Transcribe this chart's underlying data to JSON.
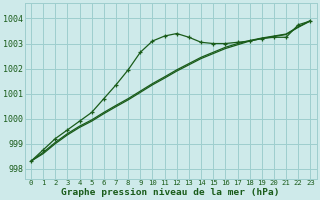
{
  "xlabel": "Graphe pression niveau de la mer (hPa)",
  "bg_color": "#ceeaea",
  "grid_color": "#9ecece",
  "line_color": "#1a5c1a",
  "xlim": [
    -0.5,
    23.5
  ],
  "ylim": [
    997.6,
    1004.6
  ],
  "yticks": [
    998,
    999,
    1000,
    1001,
    1002,
    1003,
    1004
  ],
  "xticks": [
    0,
    1,
    2,
    3,
    4,
    5,
    6,
    7,
    8,
    9,
    10,
    11,
    12,
    13,
    14,
    15,
    16,
    17,
    18,
    19,
    20,
    21,
    22,
    23
  ],
  "s1_x": [
    0,
    1,
    2,
    3,
    4,
    5,
    6,
    7,
    8,
    9,
    10,
    11,
    12,
    13,
    14,
    15,
    16,
    17,
    18,
    19,
    20,
    21,
    22,
    23
  ],
  "s1_y": [
    998.3,
    998.75,
    999.2,
    999.55,
    999.9,
    1000.25,
    1000.8,
    1001.35,
    1001.95,
    1002.65,
    1003.1,
    1003.3,
    1003.4,
    1003.25,
    1003.05,
    1003.0,
    1003.0,
    1003.05,
    1003.1,
    1003.2,
    1003.25,
    1003.25,
    1003.75,
    1003.9
  ],
  "s2_x": [
    0,
    1,
    2,
    3,
    4,
    5,
    6,
    7,
    8,
    9,
    10,
    11,
    12,
    13,
    14,
    15,
    16,
    17,
    18,
    19,
    20,
    21,
    22,
    23
  ],
  "s2_y": [
    998.3,
    998.6,
    999.0,
    999.35,
    999.65,
    999.9,
    1000.2,
    1000.48,
    1000.75,
    1001.05,
    1001.35,
    1001.62,
    1001.9,
    1002.15,
    1002.4,
    1002.6,
    1002.8,
    1002.95,
    1003.1,
    1003.2,
    1003.28,
    1003.36,
    1003.65,
    1003.9
  ],
  "s3_x": [
    0,
    1,
    2,
    3,
    4,
    5,
    6,
    7,
    8,
    9,
    10,
    11,
    12,
    13,
    14,
    15,
    16,
    17,
    18,
    19,
    20,
    21,
    22,
    23
  ],
  "s3_y": [
    998.3,
    998.65,
    999.05,
    999.4,
    999.7,
    999.95,
    1000.25,
    1000.53,
    1000.8,
    1001.1,
    1001.4,
    1001.67,
    1001.95,
    1002.2,
    1002.45,
    1002.65,
    1002.85,
    1003.0,
    1003.12,
    1003.22,
    1003.3,
    1003.38,
    1003.67,
    1003.92
  ]
}
